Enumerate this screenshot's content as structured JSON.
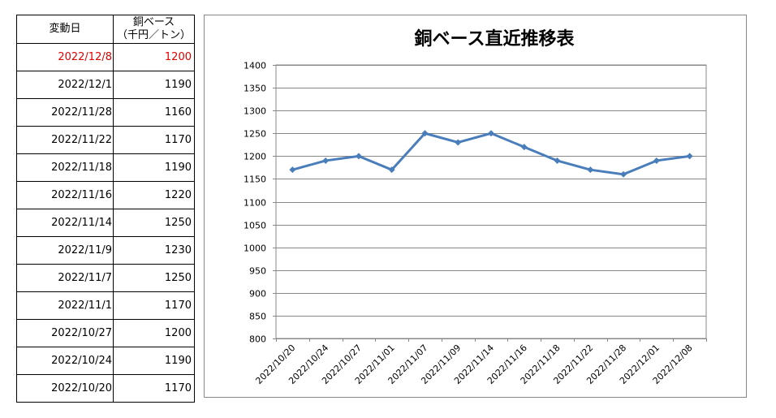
{
  "table": {
    "header_date": "変動日",
    "header_price_line1": "銅ベース",
    "header_price_line2": "（千円／トン）",
    "rows": [
      {
        "date": "2022/12/8",
        "price": "1200"
      },
      {
        "date": "2022/12/1",
        "price": "1190"
      },
      {
        "date": "2022/11/28",
        "price": "1160"
      },
      {
        "date": "2022/11/22",
        "price": "1170"
      },
      {
        "date": "2022/11/18",
        "price": "1190"
      },
      {
        "date": "2022/11/16",
        "price": "1220"
      },
      {
        "date": "2022/11/14",
        "price": "1250"
      },
      {
        "date": "2022/11/9",
        "price": "1230"
      },
      {
        "date": "2022/11/7",
        "price": "1250"
      },
      {
        "date": "2022/11/1",
        "price": "1170"
      },
      {
        "date": "2022/10/27",
        "price": "1200"
      },
      {
        "date": "2022/10/24",
        "price": "1190"
      },
      {
        "date": "2022/10/20",
        "price": "1170"
      }
    ],
    "highlight_color": "#e00000"
  },
  "chart_data": {
    "type": "line",
    "title": "銅ベース直近推移表",
    "categories": [
      "2022/10/20",
      "2022/10/24",
      "2022/10/27",
      "2022/11/01",
      "2022/11/07",
      "2022/11/09",
      "2022/11/14",
      "2022/11/16",
      "2022/11/18",
      "2022/11/22",
      "2022/11/28",
      "2022/12/01",
      "2022/12/08"
    ],
    "series": [
      {
        "values": [
          1170,
          1190,
          1200,
          1170,
          1250,
          1230,
          1250,
          1220,
          1190,
          1170,
          1160,
          1190,
          1200
        ],
        "color": "#4a7ebb"
      }
    ],
    "ylim": [
      800,
      1400
    ],
    "yticks": [
      800,
      850,
      900,
      950,
      1000,
      1050,
      1100,
      1150,
      1200,
      1250,
      1300,
      1350,
      1400
    ],
    "grid": true,
    "marker": "diamond"
  }
}
